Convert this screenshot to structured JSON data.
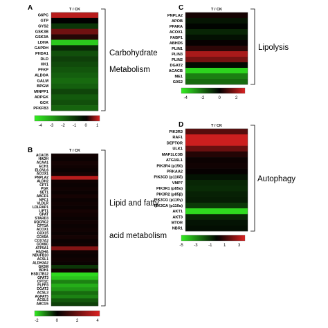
{
  "chart_data": [
    {
      "panel": "A",
      "type": "heatmap",
      "column": "T / CK",
      "bracket_label": [
        "Carbohydrate",
        "Metabolism"
      ],
      "rows": [
        "G6PC",
        "GTP",
        "GYS2",
        "GSK3B",
        "GSK3A",
        "LDHA",
        "GAPDH",
        "PHDA1",
        "DLD",
        "HK1",
        "PFKP",
        "ALDOA",
        "GALM",
        "BPGM",
        "MINPP1",
        "ADPGK",
        "GCK",
        "PFKFB3"
      ],
      "values": [
        1.0,
        0.0,
        -1.0,
        0.6,
        0.2,
        -3.8,
        -0.8,
        -1.5,
        -1.2,
        -1.4,
        -1.6,
        -1.8,
        -2.0,
        -1.8,
        -1.3,
        -1.7,
        -1.5,
        -1.9
      ],
      "colorbar_ticks": [
        -4,
        -3,
        -2,
        -1,
        0,
        1
      ],
      "vmin": -4.5,
      "vmax": 1.2,
      "colorscale": [
        "#33ee22",
        "#000000",
        "#dd2222"
      ]
    },
    {
      "panel": "B",
      "type": "heatmap",
      "column": "T / CK",
      "bracket_label": [
        "Lipid and fatty",
        "acid metabolism"
      ],
      "rows": [
        "ACACB",
        "HADH",
        "ACAA1",
        "ECH1",
        "ELOVL6",
        "ACOX1",
        "PNPLA2",
        "ALDH2",
        "CPT1",
        "PGK",
        "SET1",
        "ABCD1",
        "NPC1",
        "VLDLR",
        "LDLRAP1",
        "LIPT1",
        "GPAT",
        "STARD3",
        "UQCRC2",
        "CPT1A",
        "ACOX1",
        "COX15",
        "COX5A",
        "COX7A2",
        "COX6C",
        "ATP5A1",
        "HADHA",
        "NDUFB10",
        "ACSL1",
        "ALDH3A2",
        "GK5M",
        "BDH1",
        "HSD17B12",
        "GPAT3",
        "CPT1C",
        "PLPP3",
        "DGAT2",
        "ACSL3",
        "AGPAT5",
        "ACSL5",
        "ABCG5"
      ],
      "values": [
        0.3,
        0.2,
        0.4,
        0.3,
        0.2,
        0.4,
        3.5,
        0.3,
        0.2,
        0.3,
        0.2,
        0.4,
        0.2,
        0.3,
        0.2,
        0.4,
        0.3,
        0.2,
        0.3,
        0.2,
        0.3,
        0.2,
        0.4,
        0.2,
        0.3,
        2.5,
        0.3,
        0.2,
        0.3,
        0.2,
        -0.5,
        0.3,
        -2.0,
        -1.8,
        -1.2,
        -1.6,
        -1.4,
        -1.0,
        -1.2,
        -0.8,
        -0.6
      ],
      "colorbar_ticks": [
        -2,
        0,
        2,
        4
      ],
      "vmin": -2.2,
      "vmax": 4.2,
      "colorscale": [
        "#33ee22",
        "#000000",
        "#dd2222"
      ]
    },
    {
      "panel": "C",
      "type": "heatmap",
      "column": "T / CK",
      "bracket_label": [
        "Lipolysis"
      ],
      "rows": [
        "PNPLA2",
        "APOB",
        "PPARA",
        "ACOX1",
        "FABP1",
        "ABHD5",
        "PLIN1",
        "PLIN3",
        "PLIN2",
        "DGAT2",
        "ACACB",
        "ME1",
        "G0S2"
      ],
      "values": [
        0.3,
        -0.4,
        -0.1,
        -0.7,
        -0.3,
        0.1,
        0.6,
        2.3,
        1.6,
        -0.2,
        -4.0,
        -2.4,
        -2.0
      ],
      "colorbar_ticks": [
        -4,
        -2,
        0,
        2
      ],
      "vmin": -4.5,
      "vmax": 3.0,
      "colorscale": [
        "#33ee22",
        "#000000",
        "#dd2222"
      ]
    },
    {
      "panel": "D",
      "type": "heatmap",
      "column": "T / CK",
      "bracket_label": [
        "Autophagy"
      ],
      "rows": [
        "PIK3R3",
        "RAF1",
        "DEPTOR",
        "ULK1",
        "MAP1LC3B",
        "ATG16L1",
        "PIK3R4 (p150)",
        "PRKAA2",
        "PIK3CD (p110δ)",
        "VMP7",
        "PIK3R1 (p85α)",
        "PIK3R2 (p85β)",
        "PIK3CG (p110γ)",
        "PIK3CA (p110α)",
        "AKT1",
        "AKT3",
        "MTOR",
        "NBR1"
      ],
      "values": [
        1.5,
        3.5,
        3.5,
        1.8,
        0.6,
        0.2,
        0.3,
        0.1,
        -0.4,
        -0.8,
        -0.9,
        -0.7,
        -0.6,
        -1.2,
        -4.6,
        -0.8,
        -0.4,
        -0.3
      ],
      "colorbar_ticks": [
        -5,
        -3,
        -1,
        1,
        3
      ],
      "vmin": -5.0,
      "vmax": 3.8,
      "colorscale": [
        "#33ee22",
        "#000000",
        "#dd2222"
      ]
    }
  ]
}
